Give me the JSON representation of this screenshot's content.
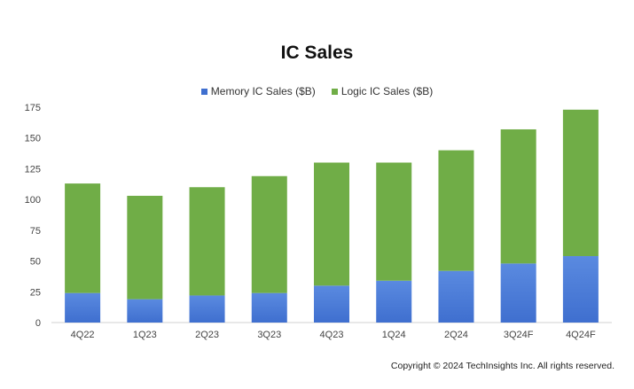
{
  "chart_data": {
    "type": "bar",
    "stacked": true,
    "title": "IC Sales",
    "categories": [
      "4Q22",
      "1Q23",
      "2Q23",
      "3Q23",
      "4Q23",
      "1Q24",
      "2Q24",
      "3Q24F",
      "4Q24F"
    ],
    "series": [
      {
        "name": "Memory IC Sales ($B)",
        "color": "#3f6fcf",
        "values": [
          24,
          19,
          22,
          24,
          30,
          34,
          42,
          48,
          54
        ]
      },
      {
        "name": "Logic IC Sales ($B)",
        "color": "#70ad47",
        "values": [
          89,
          84,
          88,
          95,
          100,
          96,
          98,
          109,
          119
        ]
      }
    ],
    "ylim": [
      0,
      175
    ],
    "yticks": [
      0,
      25,
      50,
      75,
      100,
      125,
      150,
      175
    ],
    "legend_position": "top-center",
    "grid": false
  },
  "copyright": "Copyright © 2024 TechInsights Inc.  All rights reserved."
}
